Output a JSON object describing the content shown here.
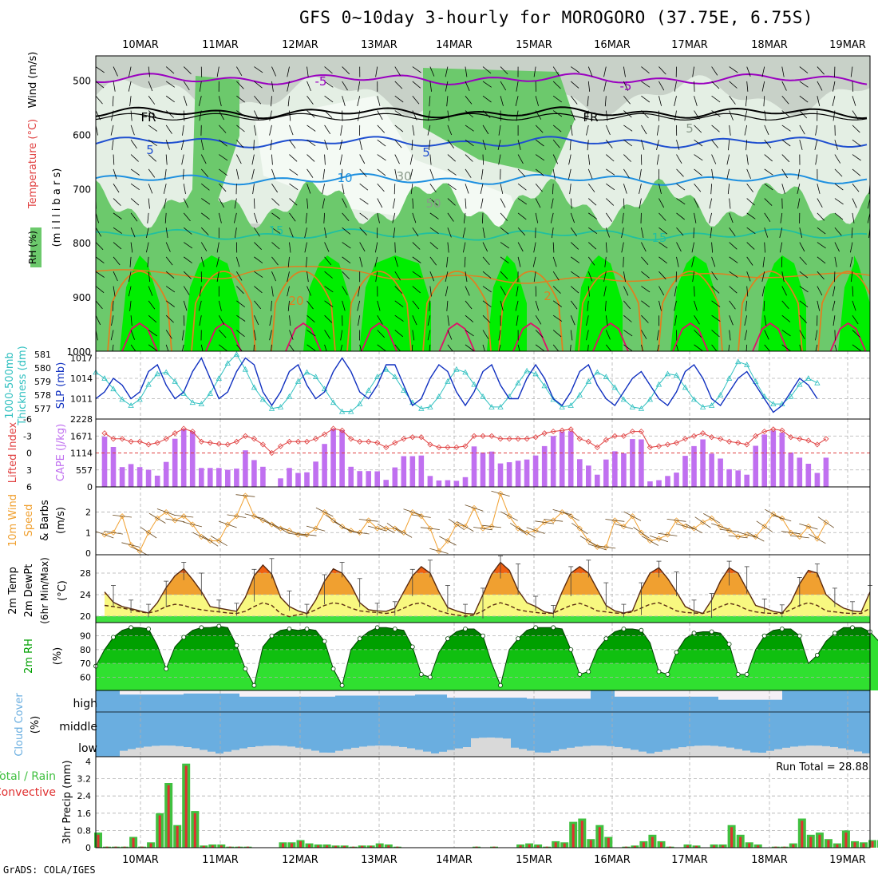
{
  "title": "GFS 0~10day 3-hourly for MOROGORO (37.75E, 6.75S)",
  "footer": "GrADS: COLA/IGES",
  "dates": [
    "10MAR",
    "11MAR",
    "12MAR",
    "13MAR",
    "14MAR",
    "15MAR",
    "16MAR",
    "17MAR",
    "18MAR",
    "19MAR"
  ],
  "colors": {
    "rh_dark": "#c8d1c8",
    "rh_mid": "#6cc96c",
    "rh_bright": "#00ee00",
    "rh_pale": "#e4efe4",
    "temp_m5": "#9a00c0",
    "temp_fr": "#000000",
    "temp_5": "#1f4fd0",
    "temp_10": "#1e90e0",
    "temp_15": "#20c0a0",
    "temp_20": "#e08020",
    "temp_25": "#e0106a",
    "slp": "#1030c0",
    "thickness": "#30c0c0",
    "cape": "#c070f0",
    "lifted": "#e04040",
    "wind10": "#f0a030",
    "temp2m": "#f0a030",
    "temp2m_hot": "#f06010",
    "temp2m_mild": "#f8f880",
    "rh2m": "#00c000",
    "cloud": "#6aaee0",
    "cloud_bg": "#f5f0f5",
    "precip_total": "#40c040",
    "precip_conv": "#e03030"
  },
  "panel1": {
    "ylabels": [
      "Wind (m/s)",
      "Temperature (°C)",
      "RH (%)"
    ],
    "unit": "(m i l l i b a r s)",
    "ticks": [
      "500",
      "600",
      "700",
      "800",
      "900",
      "1000"
    ],
    "contour_labels": [
      "-5",
      "-5",
      "FR",
      "FR",
      "5",
      "5",
      "10",
      "15",
      "15",
      "20",
      "2",
      "30",
      "50",
      "5"
    ]
  },
  "panel2": {
    "ylabels": [
      "1000-500mb",
      "Thickness (dm)",
      "SLP (mb)"
    ],
    "left_ticks": [
      "581",
      "580",
      "579",
      "578",
      "577"
    ],
    "right_ticks": [
      "1017",
      "1014",
      "1011"
    ]
  },
  "panel3": {
    "ylabels": [
      "Lifted Index",
      "CAPE (J/kg)"
    ],
    "left_ticks": [
      "-6",
      "-3",
      "0",
      "3",
      "6"
    ],
    "right_ticks": [
      "2228",
      "1671",
      "1114",
      "557",
      "0"
    ]
  },
  "panel4": {
    "ylabels": [
      "10m Wind",
      "Speed",
      "& Barbs",
      "(m/s)"
    ],
    "ticks": [
      "2",
      "1",
      "0"
    ]
  },
  "panel5": {
    "ylabels": [
      "2m Temp",
      "2m DewPt",
      "(6hr Min/Max)",
      "(°C)"
    ],
    "ticks": [
      "28",
      "24",
      "20"
    ]
  },
  "panel6": {
    "ylabels": [
      "2m RH",
      "(%)"
    ],
    "ticks": [
      "90",
      "80",
      "70",
      "60"
    ]
  },
  "panel7": {
    "ylabels": [
      "Cloud Cover",
      "(%)"
    ],
    "levels": [
      "high",
      "middle",
      "low"
    ]
  },
  "panel8": {
    "ylabels": [
      "Total / Rain",
      "Convective",
      "3hr Precip (mm)"
    ],
    "ticks": [
      "4",
      "3.2",
      "2.4",
      "1.6",
      "0.8",
      "0"
    ],
    "run_total": "Run Total = 28.88"
  },
  "chart_data": [
    {
      "type": "line",
      "title": "SLP (mb)",
      "y_range": [
        1008,
        1018
      ],
      "series": [
        {
          "name": "SLP (mb)",
          "values": [
            1011,
            1012,
            1014,
            1013,
            1011,
            1012,
            1015,
            1016,
            1013,
            1011,
            1012,
            1015,
            1017,
            1014,
            1011,
            1012,
            1015,
            1017,
            1016,
            1012,
            1010,
            1012,
            1015,
            1016,
            1013,
            1011,
            1012,
            1015,
            1017,
            1015,
            1012,
            1011,
            1013,
            1016,
            1016,
            1013,
            1010,
            1011,
            1014,
            1016,
            1015,
            1012,
            1010,
            1012,
            1015,
            1016,
            1013,
            1011,
            1011,
            1014,
            1016,
            1014,
            1011,
            1010,
            1012,
            1015,
            1016,
            1013,
            1011,
            1010,
            1012,
            1014,
            1015,
            1013,
            1011,
            1010,
            1012,
            1015,
            1016,
            1014,
            1011,
            1010,
            1012,
            1014,
            1015,
            1013,
            1011,
            1009,
            1010,
            1012,
            1014,
            1013,
            1011
          ]
        },
        {
          "name": "1000-500mb Thickness (dm)",
          "values": [
            579.6,
            579.2,
            578.5,
            577.8,
            577.4,
            577.8,
            578.8,
            579.5,
            579.6,
            579.0,
            578.2,
            577.6,
            577.5,
            578.2,
            579.2,
            580.2,
            580.8,
            579.8,
            578.6,
            577.8,
            577.2,
            577.3,
            578.0,
            579.0,
            579.6,
            579.3,
            578.5,
            577.6,
            577.0,
            577.0,
            577.5,
            578.4,
            579.3,
            579.8,
            579.3,
            578.4,
            577.6,
            577.2,
            577.3,
            578.0,
            579.0,
            579.8,
            579.6,
            578.8,
            578.0,
            577.3,
            577.3,
            578.0,
            578.9,
            579.7,
            579.5,
            578.7,
            577.8,
            577.3,
            577.4,
            578.1,
            579.0,
            579.6,
            579.3,
            578.6,
            577.8,
            577.3,
            577.2,
            577.8,
            578.8,
            579.5,
            579.4,
            578.6,
            577.8,
            577.3,
            577.4,
            578.1,
            579.2,
            580.3,
            580.1,
            579.0,
            578.0,
            577.5,
            577.5,
            578.0,
            578.8,
            579.2,
            578.9
          ]
        }
      ]
    },
    {
      "type": "bar",
      "title": "CAPE (J/kg)",
      "y_range": [
        0,
        2228
      ],
      "values": [
        1650,
        1310,
        650,
        750,
        650,
        560,
        370,
        820,
        1580,
        1900,
        1820,
        620,
        620,
        620,
        560,
        600,
        1200,
        880,
        660,
        0,
        280,
        620,
        460,
        480,
        830,
        1410,
        1910,
        1860,
        660,
        520,
        520,
        510,
        230,
        640,
        1010,
        1010,
        1030,
        360,
        210,
        220,
        200,
        320,
        1330,
        1130,
        1160,
        770,
        810,
        860,
        900,
        1030,
        1340,
        1670,
        1820,
        1830,
        910,
        700,
        400,
        900,
        1170,
        1100,
        1570,
        1560,
        180,
        220,
        360,
        470,
        1020,
        1340,
        1560,
        1090,
        930,
        580,
        540,
        400,
        1350,
        1720,
        1850,
        1780,
        1130,
        960,
        760,
        460,
        960
      ]
    },
    {
      "type": "line",
      "title": "Lifted Index",
      "y_range": [
        -6,
        6
      ],
      "values": [
        -3.5,
        -2.5,
        -2.5,
        -2.0,
        -2.0,
        -1.5,
        -1.8,
        -2.5,
        -3.5,
        -4.3,
        -3.8,
        -2.0,
        -1.8,
        -1.6,
        -1.5,
        -2.0,
        -3.0,
        -2.5,
        -1.5,
        0.0,
        -1.2,
        -2.0,
        -2.0,
        -2.0,
        -2.5,
        -3.3,
        -4.3,
        -4.0,
        -2.5,
        -2.0,
        -2.0,
        -1.8,
        -1.0,
        -1.8,
        -2.5,
        -2.8,
        -2.8,
        -1.5,
        -1.0,
        -1.0,
        -1.0,
        -1.2,
        -3.0,
        -3.0,
        -3.0,
        -2.5,
        -2.5,
        -2.5,
        -2.5,
        -2.8,
        -3.5,
        -3.8,
        -4.0,
        -4.2,
        -2.5,
        -2.0,
        -1.0,
        -2.3,
        -3.0,
        -3.0,
        -3.8,
        -3.8,
        -1.0,
        -1.2,
        -1.5,
        -1.8,
        -2.5,
        -3.0,
        -3.5,
        -2.8,
        -2.5,
        -2.0,
        -1.8,
        -1.5,
        -3.0,
        -3.8,
        -4.2,
        -4.0,
        -2.8,
        -2.5,
        -2.2,
        -1.5,
        -2.5
      ]
    },
    {
      "type": "line",
      "title": "10m Wind Speed (m/s)",
      "y_range": [
        0,
        3
      ],
      "values": [
        0.9,
        1.0,
        1.8,
        0.4,
        0.1,
        1.0,
        1.7,
        2.0,
        1.6,
        1.8,
        1.4,
        0.8,
        0.6,
        0.6,
        1.4,
        1.8,
        2.8,
        1.8,
        1.6,
        1.4,
        1.2,
        1.1,
        0.9,
        0.9,
        1.2,
        2.0,
        1.6,
        1.3,
        1.1,
        1.0,
        1.6,
        1.2,
        1.2,
        1.2,
        1.0,
        2.0,
        1.8,
        1.2,
        0.1,
        0.6,
        1.4,
        1.3,
        2.2,
        1.2,
        1.3,
        2.9,
        1.8,
        1.2,
        1.0,
        1.1,
        1.5,
        1.6,
        2.0,
        1.8,
        1.2,
        0.6,
        0.3,
        0.3,
        1.6,
        1.3,
        1.8,
        1.0,
        0.6,
        0.7,
        0.9,
        1.6,
        1.3,
        1.2,
        1.5,
        1.7,
        1.3,
        1.1,
        0.8,
        0.9,
        0.8,
        1.3,
        1.9,
        1.7,
        1.0,
        0.8,
        1.3,
        0.7,
        1.5
      ]
    },
    {
      "type": "area",
      "title": "2m Temp (°C)",
      "y_range": [
        19,
        31
      ],
      "series": [
        {
          "name": "2m Temp",
          "values": [
            24.5,
            22.6,
            21.8,
            21.4,
            21.0,
            20.6,
            22.5,
            25.3,
            27.5,
            28.8,
            26.8,
            24.6,
            21.8,
            21.5,
            21.2,
            20.9,
            23.5,
            27.5,
            29.5,
            27.8,
            23.5,
            21.8,
            21.0,
            20.5,
            23.0,
            26.5,
            28.8,
            28.0,
            25.8,
            22.5,
            21.2,
            21.0,
            20.9,
            21.5,
            24.5,
            27.5,
            29.2,
            28.0,
            24.5,
            21.6,
            21.0,
            20.5,
            20.4,
            24.0,
            27.8,
            30.0,
            28.5,
            24.8,
            22.5,
            21.8,
            20.8,
            20.5,
            24.5,
            28.0,
            29.2,
            28.0,
            25.0,
            22.0,
            21.0,
            20.6,
            21.0,
            25.0,
            28.0,
            29.0,
            27.0,
            24.5,
            21.8,
            21.0,
            20.5,
            23.0,
            26.5,
            29.0,
            28.0,
            25.0,
            22.0,
            21.5,
            20.9,
            20.6,
            22.5,
            26.0,
            28.5,
            28.0,
            24.0,
            22.5,
            21.5,
            21.0,
            20.8,
            24.5
          ]
        },
        {
          "name": "2m DewPt",
          "values": [
            22.0,
            21.8,
            21.5,
            21.2,
            20.8,
            20.6,
            21.0,
            21.8,
            22.2,
            22.0,
            21.5,
            21.2,
            21.0,
            20.8,
            20.6,
            20.5,
            20.9,
            21.8,
            22.5,
            22.0,
            20.5,
            19.9,
            20.3,
            20.5,
            21.2,
            22.0,
            22.5,
            22.2,
            21.5,
            21.0,
            20.8,
            20.7,
            20.5,
            20.8,
            21.5,
            22.2,
            22.5,
            21.8,
            21.0,
            20.5,
            20.2,
            20.0,
            20.2,
            21.0,
            22.0,
            22.5,
            22.0,
            21.2,
            20.9,
            20.7,
            20.5,
            20.6,
            21.3,
            22.0,
            22.4,
            21.8,
            21.0,
            20.8,
            20.6,
            20.5,
            20.8,
            21.5,
            22.2,
            22.5,
            21.8,
            21.0,
            20.7,
            20.6,
            20.5,
            21.0,
            21.8,
            22.4,
            22.0,
            21.2,
            20.8,
            20.6,
            20.5,
            20.5,
            21.2,
            22.0,
            22.5,
            22.0,
            21.0,
            20.8,
            20.6,
            20.5,
            20.5,
            21.5
          ]
        }
      ]
    },
    {
      "type": "area",
      "title": "2m RH (%)",
      "y_range": [
        50,
        100
      ],
      "values": [
        68,
        80,
        89,
        94,
        96,
        96,
        95,
        83,
        66,
        82,
        89,
        94,
        96,
        96,
        97,
        96,
        83,
        66,
        54,
        82,
        90,
        94,
        95,
        94,
        95,
        94,
        86,
        66,
        54,
        80,
        88,
        93,
        96,
        96,
        95,
        94,
        82,
        62,
        60,
        78,
        88,
        93,
        95,
        95,
        90,
        70,
        54,
        80,
        88,
        94,
        96,
        96,
        96,
        95,
        80,
        62,
        64,
        80,
        88,
        93,
        95,
        95,
        94,
        85,
        64,
        62,
        78,
        88,
        92,
        93,
        93,
        92,
        84,
        62,
        62,
        80,
        90,
        94,
        95,
        95,
        90,
        70,
        76,
        86,
        92,
        96,
        96,
        96,
        93,
        86
      ]
    },
    {
      "type": "bar",
      "title": "3hr Precip (mm)",
      "y_range": [
        0,
        4
      ],
      "series": [
        {
          "name": "Total",
          "values": [
            0.7,
            0.05,
            0.05,
            0.05,
            0.5,
            0.05,
            0.25,
            1.6,
            3.0,
            1.05,
            3.9,
            1.7,
            0.1,
            0.15,
            0.15,
            0.05,
            0.05,
            0.05,
            0.0,
            0.0,
            0.0,
            0.25,
            0.25,
            0.35,
            0.2,
            0.15,
            0.15,
            0.1,
            0.1,
            0.05,
            0.1,
            0.1,
            0.2,
            0.15,
            0.05,
            0.0,
            0.0,
            0.0,
            0.0,
            0.0,
            0.0,
            0.0,
            0.0,
            0.05,
            0.0,
            0.05,
            0.0,
            0.0,
            0.15,
            0.2,
            0.15,
            0.05,
            0.3,
            0.25,
            1.2,
            1.35,
            0.4,
            1.05,
            0.5,
            0.0,
            0.05,
            0.1,
            0.3,
            0.6,
            0.3,
            0.05,
            0.0,
            0.15,
            0.1,
            0.0,
            0.15,
            0.15,
            1.05,
            0.6,
            0.25,
            0.15,
            0.0,
            0.05,
            0.05,
            0.2,
            1.35,
            0.6,
            0.7,
            0.4,
            0.2,
            0.8,
            0.3,
            0.25,
            0.35,
            0.35
          ]
        },
        {
          "name": "Convective",
          "values": [
            0.6,
            0.05,
            0.05,
            0.05,
            0.45,
            0.05,
            0.2,
            1.5,
            2.9,
            1.0,
            3.8,
            1.6,
            0.08,
            0.1,
            0.1,
            0.05,
            0.05,
            0.05,
            0.0,
            0.0,
            0.0,
            0.2,
            0.2,
            0.3,
            0.15,
            0.1,
            0.1,
            0.08,
            0.08,
            0.05,
            0.08,
            0.08,
            0.15,
            0.1,
            0.05,
            0.0,
            0.0,
            0.0,
            0.0,
            0.0,
            0.0,
            0.0,
            0.0,
            0.05,
            0.0,
            0.05,
            0.0,
            0.0,
            0.1,
            0.15,
            0.1,
            0.05,
            0.25,
            0.2,
            1.1,
            1.25,
            0.35,
            0.95,
            0.45,
            0.0,
            0.05,
            0.08,
            0.25,
            0.5,
            0.25,
            0.05,
            0.0,
            0.1,
            0.08,
            0.0,
            0.1,
            0.1,
            0.95,
            0.5,
            0.2,
            0.1,
            0.0,
            0.05,
            0.05,
            0.15,
            1.25,
            0.5,
            0.6,
            0.35,
            0.15,
            0.7,
            0.25,
            0.2,
            0.3,
            0.3
          ]
        }
      ]
    }
  ]
}
